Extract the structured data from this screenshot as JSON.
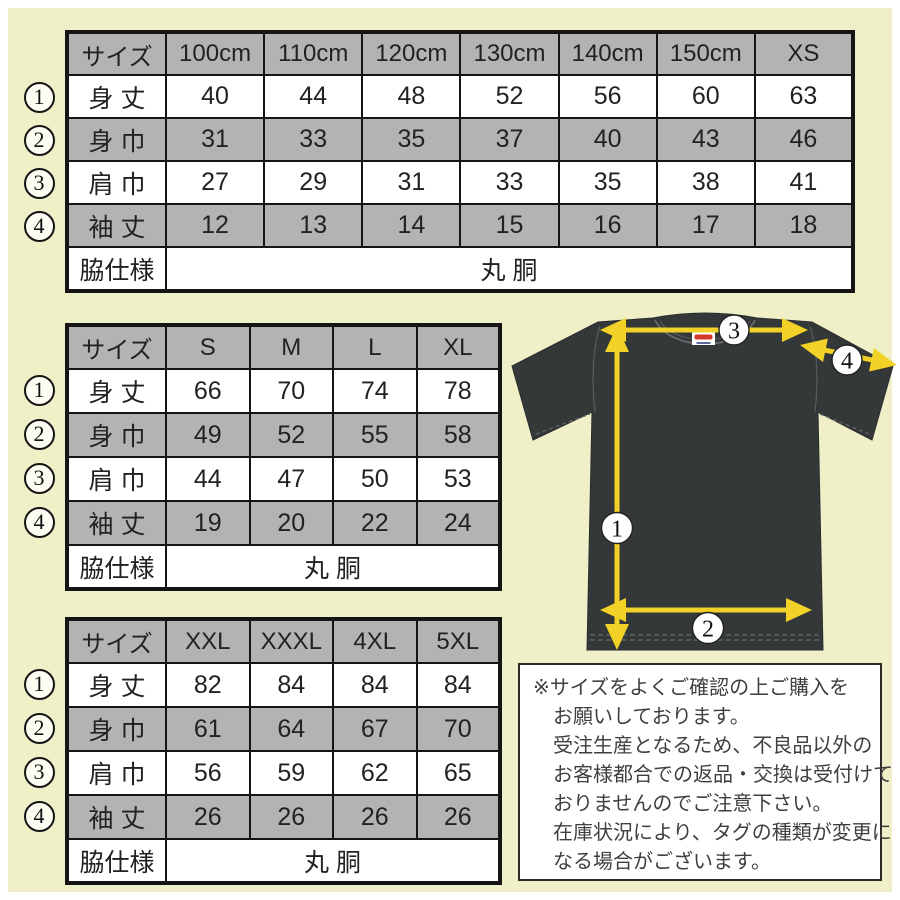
{
  "colors": {
    "background": "#f0f0c8",
    "table_gray": "#b3b3b3",
    "shirt": "#343839",
    "arrow_yellow": "#f2d226",
    "tag_red": "#d43a2a"
  },
  "tables": [
    {
      "name": "kids-size-table",
      "size_header": "サイズ",
      "columns": [
        "100cm",
        "110cm",
        "120cm",
        "130cm",
        "140cm",
        "150cm",
        "XS"
      ],
      "rows": [
        {
          "marker": "1",
          "label": "身 丈",
          "values": [
            "40",
            "44",
            "48",
            "52",
            "56",
            "60",
            "63"
          ]
        },
        {
          "marker": "2",
          "label": "身 巾",
          "values": [
            "31",
            "33",
            "35",
            "37",
            "40",
            "43",
            "46"
          ]
        },
        {
          "marker": "3",
          "label": "肩 巾",
          "values": [
            "27",
            "29",
            "31",
            "33",
            "35",
            "38",
            "41"
          ]
        },
        {
          "marker": "4",
          "label": "袖 丈",
          "values": [
            "12",
            "13",
            "14",
            "15",
            "16",
            "17",
            "18"
          ]
        }
      ],
      "footer": {
        "label": "脇仕様",
        "value": "丸 胴"
      }
    },
    {
      "name": "adult-size-table",
      "size_header": "サイズ",
      "columns": [
        "S",
        "M",
        "L",
        "XL"
      ],
      "rows": [
        {
          "marker": "1",
          "label": "身 丈",
          "values": [
            "66",
            "70",
            "74",
            "78"
          ]
        },
        {
          "marker": "2",
          "label": "身 巾",
          "values": [
            "49",
            "52",
            "55",
            "58"
          ]
        },
        {
          "marker": "3",
          "label": "肩 巾",
          "values": [
            "44",
            "47",
            "50",
            "53"
          ]
        },
        {
          "marker": "4",
          "label": "袖 丈",
          "values": [
            "19",
            "20",
            "22",
            "24"
          ]
        }
      ],
      "footer": {
        "label": "脇仕様",
        "value": "丸 胴"
      }
    },
    {
      "name": "big-size-table",
      "size_header": "サイズ",
      "columns": [
        "XXL",
        "XXXL",
        "4XL",
        "5XL"
      ],
      "rows": [
        {
          "marker": "1",
          "label": "身 丈",
          "values": [
            "82",
            "84",
            "84",
            "84"
          ]
        },
        {
          "marker": "2",
          "label": "身 巾",
          "values": [
            "61",
            "64",
            "67",
            "70"
          ]
        },
        {
          "marker": "3",
          "label": "肩 巾",
          "values": [
            "56",
            "59",
            "62",
            "65"
          ]
        },
        {
          "marker": "4",
          "label": "袖 丈",
          "values": [
            "26",
            "26",
            "26",
            "26"
          ]
        }
      ],
      "footer": {
        "label": "脇仕様",
        "value": "丸 胴"
      }
    }
  ],
  "diagram": {
    "markers": {
      "m1": "1",
      "m2": "2",
      "m3": "3",
      "m4": "4"
    }
  },
  "note": {
    "lines": [
      "※サイズをよくご確認の上ご購入を",
      "お願いしております。",
      "受注生産となるため、不良品以外の",
      "お客様都合での返品・交換は受付けて",
      "おりませんのでご注意下さい。",
      "在庫状況により、タグの種類が変更に",
      "なる場合がございます。"
    ]
  }
}
